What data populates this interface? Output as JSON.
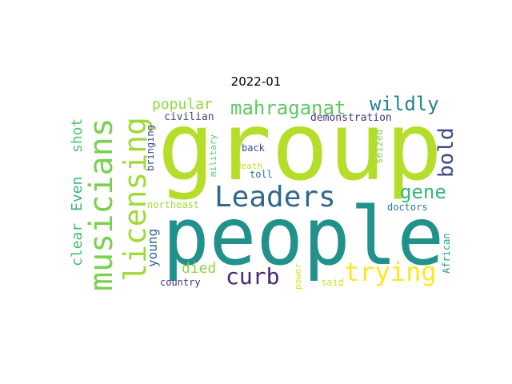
{
  "figure": {
    "title": "2022-01"
  },
  "word_cloud": {
    "words": [
      {
        "text": "group",
        "color": "#b5de2b"
      },
      {
        "text": "people",
        "color": "#21918c"
      },
      {
        "text": "musicians",
        "color": "#7ad151"
      },
      {
        "text": "licensing",
        "color": "#a0da39"
      },
      {
        "text": "Leaders",
        "color": "#31688e"
      },
      {
        "text": "mahraganat",
        "color": "#5ec962"
      },
      {
        "text": "trying",
        "color": "#fde725"
      },
      {
        "text": "curb",
        "color": "#482878"
      },
      {
        "text": "wildly",
        "color": "#26828e"
      },
      {
        "text": "bold",
        "color": "#3e4989"
      },
      {
        "text": "gene",
        "color": "#35b779"
      },
      {
        "text": "popular",
        "color": "#8fd744"
      },
      {
        "text": "clear",
        "color": "#3fbc73"
      },
      {
        "text": "Even",
        "color": "#35b779"
      },
      {
        "text": "shot",
        "color": "#4ac16d"
      },
      {
        "text": "died",
        "color": "#8fd744"
      },
      {
        "text": "young",
        "color": "#31688e"
      },
      {
        "text": "civilian",
        "color": "#3e4989"
      },
      {
        "text": "demonstration",
        "color": "#453781"
      },
      {
        "text": "bringing",
        "color": "#3e4989"
      },
      {
        "text": "military",
        "color": "#5ec962"
      },
      {
        "text": "back",
        "color": "#3e4989"
      },
      {
        "text": "death",
        "color": "#c8e020"
      },
      {
        "text": "toll",
        "color": "#2c728e"
      },
      {
        "text": "seized",
        "color": "#7ad151"
      },
      {
        "text": "northeast",
        "color": "#a0da39"
      },
      {
        "text": "doctors",
        "color": "#2a788e"
      },
      {
        "text": "African",
        "color": "#1fa187"
      },
      {
        "text": "country",
        "color": "#46327e"
      },
      {
        "text": "power",
        "color": "#d8e219"
      },
      {
        "text": "said",
        "color": "#d2e21b"
      }
    ]
  }
}
